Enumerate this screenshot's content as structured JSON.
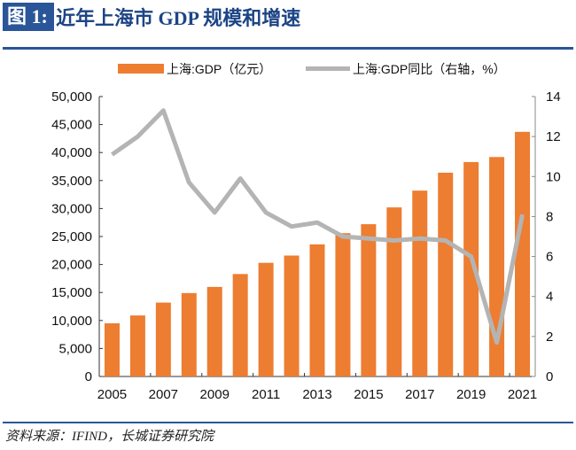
{
  "figure_label": "图 1:",
  "title": "近年上海市 GDP 规模和增速",
  "source": "资料来源：IFIND，长城证券研究院",
  "chart_data": {
    "type": "bar+line",
    "categories": [
      "2005",
      "2006",
      "2007",
      "2008",
      "2009",
      "2010",
      "2011",
      "2012",
      "2013",
      "2014",
      "2015",
      "2016",
      "2017",
      "2018",
      "2019",
      "2020",
      "2021"
    ],
    "x_tick_labels": [
      "2005",
      "2007",
      "2009",
      "2011",
      "2013",
      "2015",
      "2017",
      "2019",
      "2021"
    ],
    "series": [
      {
        "name": "上海:GDP（亿元）",
        "type": "bar",
        "axis": "left",
        "color": "#ed7d31",
        "values": [
          9500,
          10900,
          13200,
          14900,
          16000,
          18300,
          20300,
          21600,
          23600,
          25600,
          27200,
          30200,
          33200,
          36400,
          38300,
          39200,
          43700
        ]
      },
      {
        "name": "上海:GDP同比（右轴，%）",
        "type": "line",
        "axis": "right",
        "color": "#b4b4b4",
        "values": [
          11.1,
          12.0,
          13.3,
          9.7,
          8.2,
          9.9,
          8.2,
          7.5,
          7.7,
          7.0,
          6.9,
          6.8,
          6.9,
          6.8,
          6.0,
          1.7,
          8.1
        ]
      }
    ],
    "left_axis": {
      "ylim": [
        0,
        50000
      ],
      "ticks": [
        "0",
        "5,000",
        "10,000",
        "15,000",
        "20,000",
        "25,000",
        "30,000",
        "35,000",
        "40,000",
        "45,000",
        "50,000"
      ]
    },
    "right_axis": {
      "ylim": [
        0,
        14
      ],
      "ticks": [
        "0",
        "2",
        "4",
        "6",
        "8",
        "10",
        "12",
        "14"
      ]
    },
    "legend_position": "top",
    "grid": false
  }
}
